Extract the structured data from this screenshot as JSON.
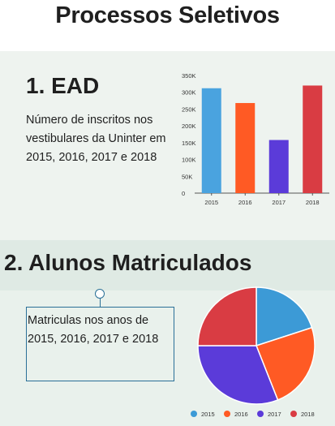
{
  "page": {
    "title": "Processos Seletivos"
  },
  "section1": {
    "heading": "1. EAD",
    "description": "Número de inscritos nos vestibulares da Uninter em 2015, 2016, 2017 e 2018"
  },
  "section2": {
    "heading": "2. Alunos Matriculados",
    "textbox": "Matriculas nos anos de 2015, 2016, 2017 e 2018"
  },
  "chart_data": [
    {
      "type": "bar",
      "categories": [
        "2015",
        "2016",
        "2017",
        "2018"
      ],
      "values": [
        312000,
        268000,
        158000,
        320000
      ],
      "colors": [
        "#4aa3df",
        "#ff5a24",
        "#5b3bd9",
        "#d93c43"
      ],
      "yticks": [
        "0",
        "50K",
        "100K",
        "150K",
        "200K",
        "250K",
        "300K",
        "350K"
      ],
      "ylim": [
        0,
        350000
      ],
      "grid": false
    },
    {
      "type": "pie",
      "labels": [
        "2015",
        "2016",
        "2017",
        "2018"
      ],
      "values": [
        20,
        24,
        31,
        25
      ],
      "colors": [
        "#3c9ad6",
        "#ff5a24",
        "#5b3bd9",
        "#d93c43"
      ],
      "legend": "bottom"
    }
  ]
}
